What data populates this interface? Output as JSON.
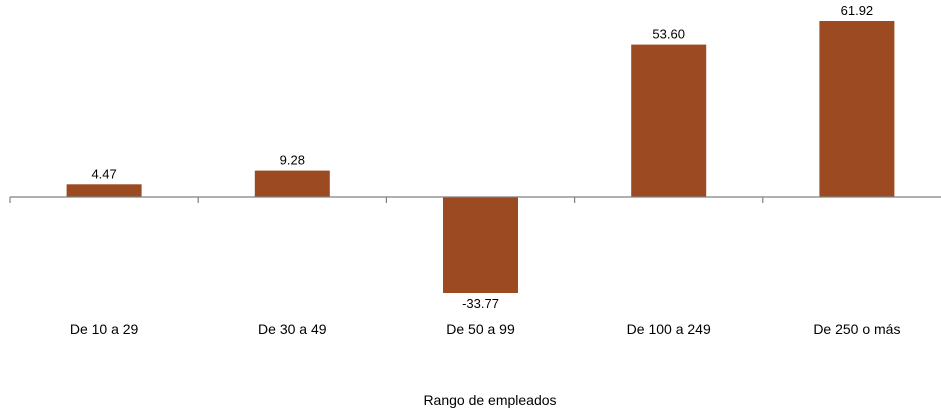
{
  "chart_data": {
    "type": "bar",
    "categories": [
      "De 10 a 29",
      "De 30 a 49",
      "De 50 a 99",
      "De 100 a 249",
      "De 250 o más"
    ],
    "values": [
      4.47,
      9.28,
      -33.77,
      53.6,
      61.92
    ],
    "value_labels": [
      "4.47",
      "9.28",
      "-33.77",
      "53.60",
      "61.92"
    ],
    "title": "",
    "xlabel": "Rango de empleados",
    "ylabel": "",
    "ylim": [
      -35,
      65
    ],
    "grid": false,
    "legend": "none",
    "colors": {
      "bar": "#9c4a22",
      "axis": "#808080",
      "text": "#000000"
    }
  }
}
